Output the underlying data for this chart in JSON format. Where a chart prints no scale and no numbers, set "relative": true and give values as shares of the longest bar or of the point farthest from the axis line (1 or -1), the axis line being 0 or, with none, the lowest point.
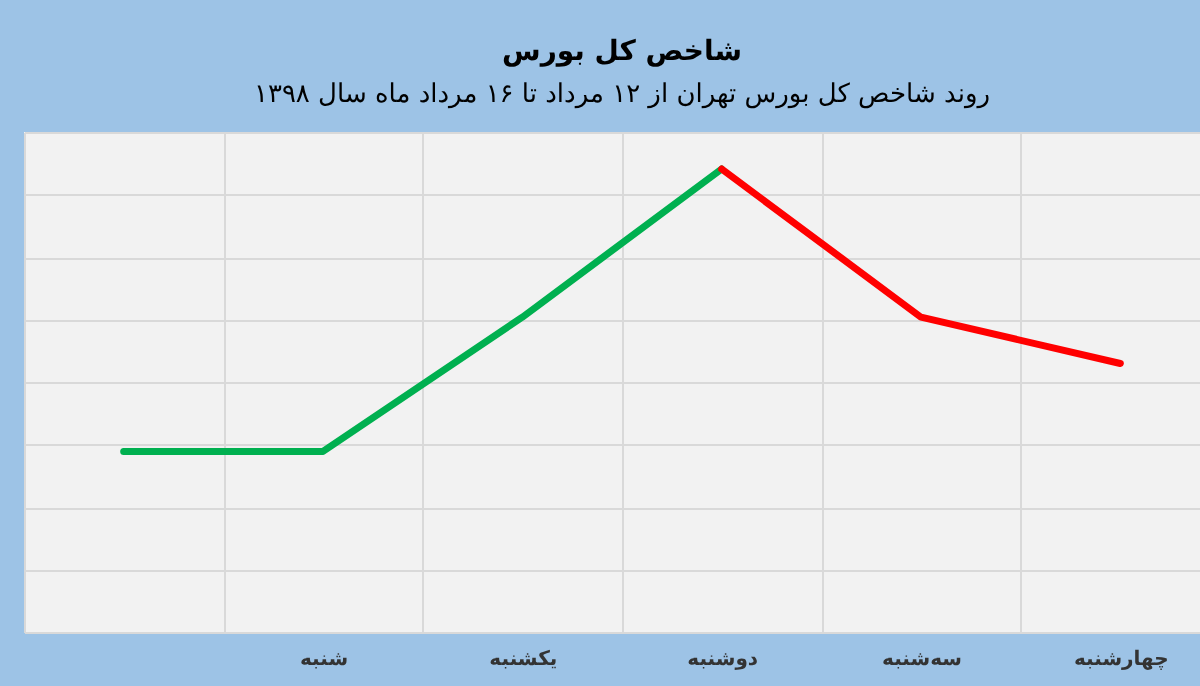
{
  "chart_data": {
    "type": "line",
    "title": "شاخص کل بورس",
    "subtitle": "روند شاخص کل بورس تهران از ۱۲ مرداد تا ۱۶ مرداد ماه سال ۱۳۹۸",
    "categories": [
      null,
      "شنبه",
      "یکشنبه",
      "دوشنبه",
      "سه‌شنبه",
      "چهارشنبه"
    ],
    "relative": true,
    "grid": true,
    "legend": false,
    "series": [
      {
        "color": "#00b050",
        "values": [
          0.39,
          0.39,
          0.68,
          1,
          null,
          null
        ]
      },
      {
        "color": "#ff0000",
        "values": [
          null,
          null,
          null,
          1,
          0.68,
          0.58
        ]
      }
    ]
  }
}
